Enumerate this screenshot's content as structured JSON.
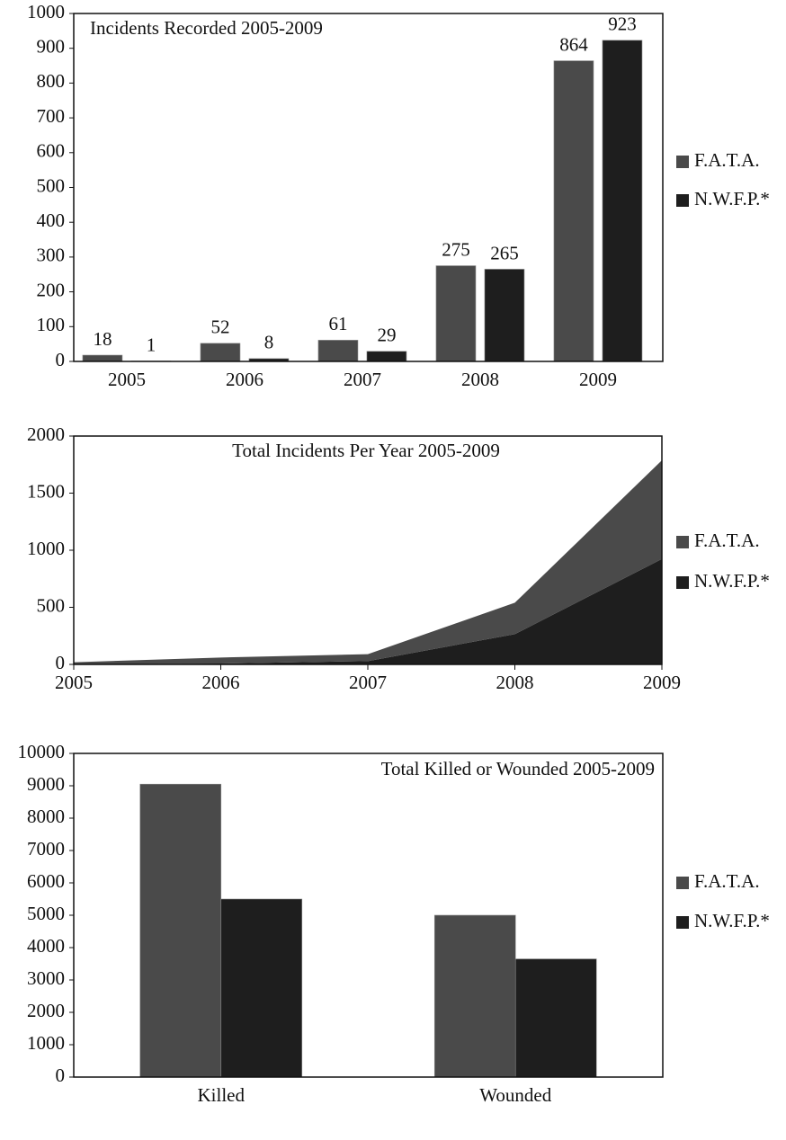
{
  "chart_data": [
    {
      "type": "bar",
      "title": "Incidents Recorded 2005-2009",
      "categories": [
        "2005",
        "2006",
        "2007",
        "2008",
        "2009"
      ],
      "series": [
        {
          "name": "F.A.T.A.",
          "color": "#4a4a4a",
          "values": [
            18,
            52,
            61,
            275,
            864
          ]
        },
        {
          "name": "N.W.F.P.*",
          "color": "#1e1e1e",
          "values": [
            1,
            8,
            29,
            265,
            923
          ]
        }
      ],
      "ylim": [
        0,
        1000
      ],
      "yticks": [
        0,
        100,
        200,
        300,
        400,
        500,
        600,
        700,
        800,
        900,
        1000
      ],
      "data_labels": true
    },
    {
      "type": "area",
      "title": "Total Incidents Per Year 2005-2009",
      "x": [
        2005,
        2006,
        2007,
        2008,
        2009
      ],
      "series": [
        {
          "name": "F.A.T.A.",
          "color": "#4a4a4a",
          "values": [
            18,
            52,
            61,
            275,
            864
          ]
        },
        {
          "name": "N.W.F.P.*",
          "color": "#1e1e1e",
          "values": [
            1,
            8,
            29,
            265,
            923
          ]
        }
      ],
      "xlim": [
        2005,
        2009
      ],
      "xticks": [
        2005,
        2006,
        2007,
        2008,
        2009
      ],
      "ylim": [
        0,
        2000
      ],
      "yticks": [
        0,
        500,
        1000,
        1500,
        2000
      ]
    },
    {
      "type": "bar",
      "title": "Total Killed or Wounded 2005-2009",
      "categories": [
        "Killed",
        "Wounded"
      ],
      "series": [
        {
          "name": "F.A.T.A.",
          "color": "#4a4a4a",
          "values": [
            9050,
            5000
          ]
        },
        {
          "name": "N.W.F.P.*",
          "color": "#1e1e1e",
          "values": [
            5500,
            3650
          ]
        }
      ],
      "ylim": [
        0,
        10000
      ],
      "yticks": [
        0,
        1000,
        2000,
        3000,
        4000,
        5000,
        6000,
        7000,
        8000,
        9000,
        10000
      ]
    }
  ]
}
